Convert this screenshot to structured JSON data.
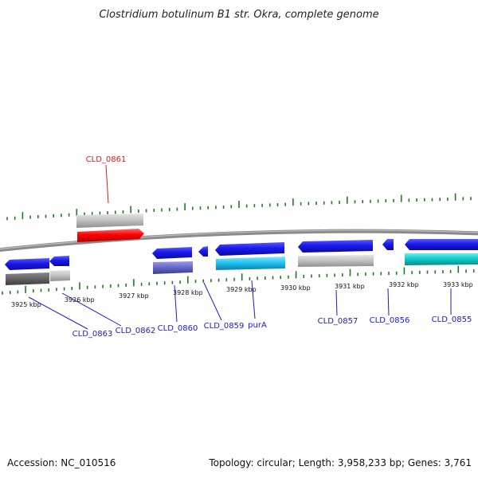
{
  "title": "Clostridium botulinum B1 str. Okra, complete genome",
  "footer": {
    "accession": "Accession: NC_010516",
    "summary": "Topology: circular; Length: 3,958,233 bp; Genes: 3,761"
  },
  "colors": {
    "backbone": "#8a8a8a",
    "tick": "#1f7a1f",
    "label_default": "#1a1acc",
    "label_highlight": "#cc2222"
  },
  "axis": {
    "labels": [
      "3925 kbp",
      "3926 kbp",
      "3927 kbp",
      "3928 kbp",
      "3929 kbp",
      "3930 kbp",
      "3931 kbp",
      "3932 kbp",
      "3933 kbp"
    ]
  },
  "genes": [
    {
      "name": "CLD_0863",
      "color": "#1a1acc"
    },
    {
      "name": "CLD_0862",
      "color": "#1a1acc"
    },
    {
      "name": "CLD_0861",
      "color": "#cc2222"
    },
    {
      "name": "CLD_0860",
      "color": "#1a1acc"
    },
    {
      "name": "CLD_0859",
      "color": "#1a1acc"
    },
    {
      "name": "purA",
      "color": "#1a1acc"
    },
    {
      "name": "CLD_0857",
      "color": "#1a1acc"
    },
    {
      "name": "CLD_0856",
      "color": "#1a1acc"
    },
    {
      "name": "CLD_0855",
      "color": "#1a1acc"
    }
  ]
}
